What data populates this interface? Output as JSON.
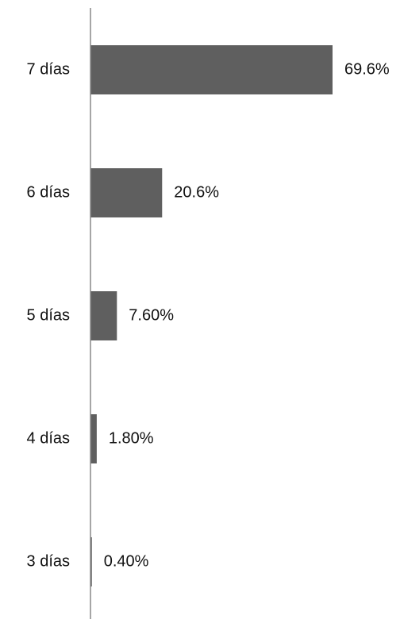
{
  "chart_data": {
    "type": "bar",
    "orientation": "horizontal",
    "title": "",
    "xlabel": "",
    "ylabel": "",
    "categories": [
      "7 días",
      "6 días",
      "5 días",
      "4 días",
      "3 días"
    ],
    "values": [
      69.6,
      20.6,
      7.6,
      1.8,
      0.4
    ],
    "value_labels": [
      "69.6%",
      "20.6%",
      "7.60%",
      "1.80%",
      "0.40%"
    ],
    "xlim": [
      0,
      80
    ],
    "grid": false,
    "legend": "none",
    "colors": {
      "bar": "#5f5f5f",
      "axis": "#888888",
      "text": "#111111"
    }
  }
}
